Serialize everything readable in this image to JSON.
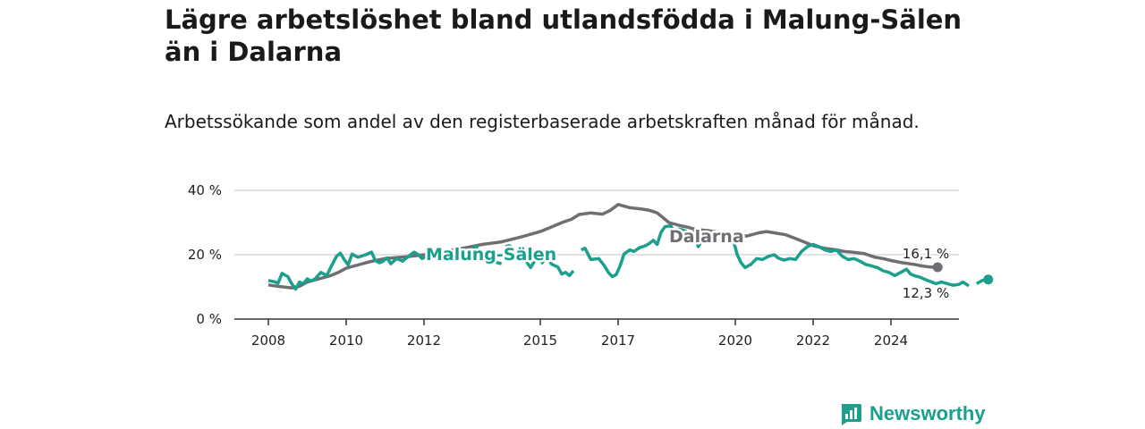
{
  "header": {
    "title": "Lägre arbetslöshet bland utlandsfödda i Malung-Sälen än i Dalarna",
    "subtitle": "Arbetssökande som andel av den registerbaserade arbetskraften månad för månad."
  },
  "brand": {
    "name": "Newsworthy",
    "icon": "bar-chart-icon",
    "color": "#1aa08d"
  },
  "chart_data": {
    "type": "line",
    "title": "Lägre arbetslöshet bland utlandsfödda i Malung-Sälen än i Dalarna",
    "subtitle": "Arbetssökande som andel av den registerbaserade arbetskraften månad för månad.",
    "xlabel": "",
    "ylabel": "",
    "x_ticks": [
      "2008",
      "2010",
      "2012",
      "2015",
      "2017",
      "2020",
      "2022",
      "2024"
    ],
    "y_ticks": [
      "0 %",
      "20 %",
      "40 %"
    ],
    "ylim": [
      0,
      40
    ],
    "xlim": [
      2007.5,
      2025.8
    ],
    "grid": "horizontal",
    "series": [
      {
        "name": "Dalarna",
        "color": "#6e6e73",
        "end_label": "16,1 %",
        "points": [
          [
            2008.0,
            10.6
          ],
          [
            2008.3,
            10.1
          ],
          [
            2008.6,
            9.7
          ],
          [
            2008.8,
            10.2
          ],
          [
            2009.0,
            11.5
          ],
          [
            2009.3,
            12.5
          ],
          [
            2009.6,
            13.5
          ],
          [
            2009.8,
            14.5
          ],
          [
            2010.0,
            15.8
          ],
          [
            2010.3,
            16.8
          ],
          [
            2010.6,
            17.8
          ],
          [
            2010.8,
            18.3
          ],
          [
            2011.0,
            18.8
          ],
          [
            2011.5,
            19.3
          ],
          [
            2012.0,
            20.0
          ],
          [
            2012.5,
            21.0
          ],
          [
            2013.0,
            22.0
          ],
          [
            2013.5,
            23.2
          ],
          [
            2014.0,
            24.0
          ],
          [
            2014.5,
            25.5
          ],
          [
            2015.0,
            27.2
          ],
          [
            2015.3,
            28.7
          ],
          [
            2015.6,
            30.2
          ],
          [
            2015.8,
            31.0
          ],
          [
            2016.0,
            32.5
          ],
          [
            2016.3,
            33.0
          ],
          [
            2016.6,
            32.6
          ],
          [
            2016.8,
            33.8
          ],
          [
            2017.0,
            35.6
          ],
          [
            2017.3,
            34.6
          ],
          [
            2017.6,
            34.2
          ],
          [
            2017.8,
            33.8
          ],
          [
            2018.0,
            33.0
          ],
          [
            2018.3,
            30.0
          ],
          [
            2018.6,
            29.0
          ],
          [
            2018.8,
            28.5
          ],
          [
            2019.0,
            27.8
          ],
          [
            2019.3,
            27.5
          ],
          [
            2019.6,
            26.9
          ],
          [
            2019.8,
            26.5
          ],
          [
            2020.0,
            26.0
          ],
          [
            2020.3,
            25.8
          ],
          [
            2020.6,
            26.8
          ],
          [
            2020.8,
            27.2
          ],
          [
            2021.0,
            26.8
          ],
          [
            2021.3,
            26.2
          ],
          [
            2021.6,
            24.8
          ],
          [
            2021.8,
            23.8
          ],
          [
            2022.0,
            22.8
          ],
          [
            2022.3,
            22.0
          ],
          [
            2022.6,
            21.5
          ],
          [
            2022.8,
            21.0
          ],
          [
            2023.0,
            20.8
          ],
          [
            2023.3,
            20.4
          ],
          [
            2023.6,
            19.2
          ],
          [
            2023.8,
            18.8
          ],
          [
            2024.0,
            18.2
          ],
          [
            2024.3,
            17.5
          ],
          [
            2024.6,
            17.0
          ],
          [
            2024.8,
            16.5
          ],
          [
            2025.0,
            16.2
          ],
          [
            2025.2,
            16.1
          ]
        ]
      },
      {
        "name": "Malung-Sälen",
        "color": "#1aa08d",
        "end_label": "12,3 %",
        "segments": [
          [
            [
              2008.0,
              12.0
            ],
            [
              2008.15,
              11.6
            ],
            [
              2008.25,
              11.2
            ],
            [
              2008.35,
              14.2
            ],
            [
              2008.5,
              13.2
            ],
            [
              2008.6,
              11.0
            ],
            [
              2008.7,
              9.3
            ],
            [
              2008.8,
              11.5
            ],
            [
              2008.9,
              11.0
            ],
            [
              2009.0,
              12.5
            ],
            [
              2009.1,
              11.8
            ],
            [
              2009.2,
              12.5
            ],
            [
              2009.35,
              14.5
            ],
            [
              2009.5,
              13.5
            ],
            [
              2009.6,
              16.0
            ],
            [
              2009.75,
              19.5
            ],
            [
              2009.85,
              20.5
            ],
            [
              2009.95,
              18.5
            ],
            [
              2010.05,
              16.8
            ],
            [
              2010.15,
              20.2
            ],
            [
              2010.3,
              19.2
            ],
            [
              2010.5,
              20.0
            ],
            [
              2010.65,
              20.8
            ],
            [
              2010.75,
              18.2
            ],
            [
              2010.85,
              17.5
            ],
            [
              2010.95,
              18.0
            ],
            [
              2011.05,
              19.0
            ],
            [
              2011.15,
              17.2
            ],
            [
              2011.3,
              18.8
            ],
            [
              2011.45,
              18.0
            ],
            [
              2011.6,
              19.5
            ],
            [
              2011.75,
              20.8
            ],
            [
              2011.85,
              20.0
            ],
            [
              2011.95,
              18.8
            ],
            [
              2012.05,
              19.5
            ],
            [
              2012.15,
              18.2
            ],
            [
              2012.3,
              20.5
            ],
            [
              2012.45,
              21.5
            ],
            [
              2012.55,
              19.8
            ],
            [
              2012.65,
              20.3
            ],
            [
              2012.75,
              19.5
            ],
            [
              2012.85,
              21.0
            ],
            [
              2012.95,
              20.5
            ],
            [
              2013.05,
              21.8
            ],
            [
              2013.15,
              19.8
            ],
            [
              2013.25,
              19.2
            ],
            [
              2013.35,
              21.2
            ]
          ],
          [
            [
              2013.1,
              19.5
            ],
            [
              2013.2,
              19.0
            ],
            [
              2013.3,
              22.6
            ],
            [
              2013.4,
              22.3
            ]
          ],
          [
            [
              2013.6,
              18.8
            ],
            [
              2013.75,
              18.0
            ],
            [
              2013.9,
              17.5
            ],
            [
              2014.0,
              17.2
            ]
          ],
          [
            [
              2014.1,
              22.5
            ],
            [
              2014.2,
              22.8
            ],
            [
              2014.3,
              22.0
            ],
            [
              2014.4,
              20.5
            ],
            [
              2014.5,
              19.5
            ],
            [
              2014.6,
              18.5
            ],
            [
              2014.75,
              16.0
            ],
            [
              2014.85,
              18.0
            ],
            [
              2014.95,
              19.0
            ],
            [
              2015.05,
              17.5
            ],
            [
              2015.15,
              19.5
            ],
            [
              2015.3,
              17.0
            ],
            [
              2015.45,
              16.2
            ],
            [
              2015.55,
              14.0
            ],
            [
              2015.65,
              14.5
            ],
            [
              2015.75,
              13.5
            ],
            [
              2015.85,
              15.0
            ]
          ],
          [
            [
              2016.05,
              21.5
            ],
            [
              2016.15,
              22.0
            ],
            [
              2016.3,
              18.5
            ],
            [
              2016.5,
              18.8
            ],
            [
              2016.65,
              16.5
            ],
            [
              2016.75,
              14.5
            ],
            [
              2016.85,
              13.2
            ],
            [
              2016.95,
              13.8
            ],
            [
              2017.05,
              16.5
            ],
            [
              2017.15,
              20.2
            ],
            [
              2017.3,
              21.5
            ],
            [
              2017.4,
              21.0
            ],
            [
              2017.55,
              22.2
            ],
            [
              2017.7,
              22.8
            ],
            [
              2017.8,
              23.5
            ],
            [
              2017.9,
              24.5
            ],
            [
              2018.0,
              23.2
            ],
            [
              2018.1,
              27.0
            ],
            [
              2018.2,
              28.7
            ],
            [
              2018.35,
              29.0
            ],
            [
              2018.45,
              26.7
            ],
            [
              2018.55,
              28.0
            ],
            [
              2018.65,
              27.7
            ],
            [
              2018.75,
              27.2
            ],
            [
              2018.85,
              25.7
            ],
            [
              2018.95,
              27.2
            ],
            [
              2019.05,
              22.5
            ],
            [
              2019.15,
              24.5
            ],
            [
              2019.3,
              25.2
            ],
            [
              2019.45,
              25.7
            ],
            [
              2019.55,
              24.0
            ]
          ],
          [
            [
              2019.95,
              24.5
            ],
            [
              2020.05,
              20.0
            ],
            [
              2020.15,
              17.5
            ],
            [
              2020.25,
              16.0
            ],
            [
              2020.4,
              17.0
            ],
            [
              2020.55,
              18.8
            ],
            [
              2020.7,
              18.5
            ],
            [
              2020.85,
              19.5
            ],
            [
              2021.0,
              20.0
            ],
            [
              2021.1,
              19.0
            ],
            [
              2021.25,
              18.3
            ],
            [
              2021.4,
              18.8
            ],
            [
              2021.55,
              18.5
            ],
            [
              2021.7,
              21.0
            ],
            [
              2021.85,
              22.5
            ],
            [
              2022.0,
              23.2
            ],
            [
              2022.15,
              22.5
            ],
            [
              2022.3,
              21.5
            ],
            [
              2022.45,
              21.0
            ],
            [
              2022.6,
              21.5
            ],
            [
              2022.75,
              19.5
            ],
            [
              2022.9,
              18.5
            ],
            [
              2023.05,
              18.8
            ],
            [
              2023.2,
              18.0
            ],
            [
              2023.35,
              17.0
            ],
            [
              2023.5,
              16.5
            ],
            [
              2023.65,
              16.0
            ],
            [
              2023.8,
              15.0
            ],
            [
              2023.95,
              14.5
            ],
            [
              2024.1,
              13.5
            ],
            [
              2024.25,
              14.5
            ],
            [
              2024.4,
              15.5
            ],
            [
              2024.5,
              14.0
            ],
            [
              2024.6,
              13.5
            ],
            [
              2024.75,
              13.0
            ],
            [
              2024.9,
              12.2
            ],
            [
              2025.05,
              11.5
            ],
            [
              2025.15,
              11.0
            ],
            [
              2025.3,
              11.5
            ],
            [
              2025.45,
              11.0
            ],
            [
              2025.6,
              10.5
            ],
            [
              2025.75,
              10.8
            ],
            [
              2025.85,
              11.5
            ],
            [
              2026.0,
              10.3
            ]
          ],
          [
            [
              2026.2,
              11.0
            ],
            [
              2026.35,
              12.0
            ],
            [
              2026.5,
              12.3
            ]
          ]
        ]
      }
    ]
  }
}
